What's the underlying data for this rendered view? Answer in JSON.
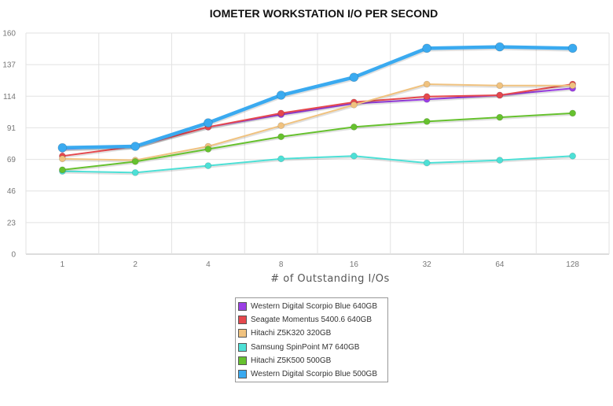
{
  "chart_data": {
    "type": "line",
    "title": "IOMETER WORKSTATION I/O PER SECOND",
    "xlabel": "# of Outstanding I/Os",
    "ylabel": "",
    "categories": [
      "1",
      "2",
      "4",
      "8",
      "16",
      "32",
      "64",
      "128"
    ],
    "ylim": [
      0,
      160
    ],
    "yticks": [
      "0",
      "23",
      "46",
      "69",
      "91",
      "114",
      "137",
      "160"
    ],
    "grid": true,
    "legend_position": "bottom",
    "series": [
      {
        "name": "Western Digital Scorpio Blue 640GB",
        "color": "#9b3fe6",
        "values": [
          76,
          78,
          92,
          101,
          109,
          112,
          115,
          120
        ]
      },
      {
        "name": "Seagate Momentus 5400.6 640GB",
        "color": "#e5484d",
        "values": [
          71,
          78,
          92,
          102,
          110,
          114,
          115,
          123
        ]
      },
      {
        "name": "Hitachi Z5K320 320GB",
        "color": "#f0c27f",
        "values": [
          69,
          68,
          78,
          93,
          108,
          123,
          122,
          122
        ]
      },
      {
        "name": "Samsung SpinPoint M7 640GB",
        "color": "#4de0d6",
        "values": [
          60,
          59,
          64,
          69,
          71,
          66,
          68,
          71
        ]
      },
      {
        "name": "Hitachi Z5K500 500GB",
        "color": "#66c12e",
        "values": [
          61,
          67,
          76,
          85,
          92,
          96,
          99,
          102
        ]
      },
      {
        "name": "Western Digital Scorpio Blue 500GB",
        "color": "#3aaaf0",
        "values": [
          77,
          78,
          95,
          115,
          128,
          149,
          150,
          149
        ]
      }
    ]
  }
}
